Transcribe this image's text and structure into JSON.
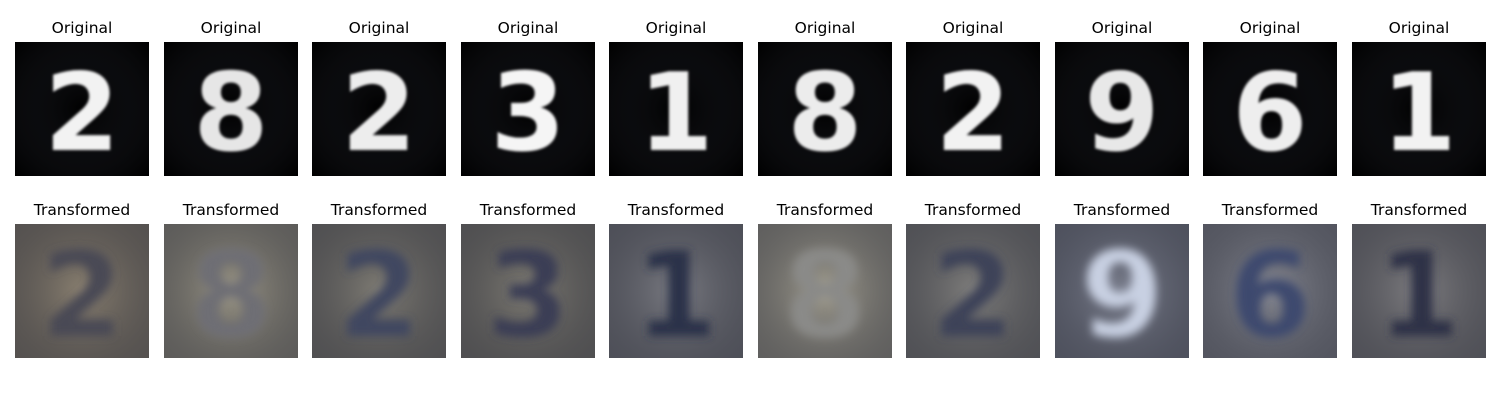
{
  "figure": {
    "rows": [
      {
        "name": "original",
        "title": "Original",
        "items": [
          {
            "digit": "2",
            "background": "#000000",
            "ink": "#f2f2f2"
          },
          {
            "digit": "8",
            "background": "#000000",
            "ink": "#e6e6e6"
          },
          {
            "digit": "2",
            "background": "#000000",
            "ink": "#ededed"
          },
          {
            "digit": "3",
            "background": "#000000",
            "ink": "#f5f5f5"
          },
          {
            "digit": "1",
            "background": "#000000",
            "ink": "#f0f0f0"
          },
          {
            "digit": "8",
            "background": "#000000",
            "ink": "#ececec"
          },
          {
            "digit": "2",
            "background": "#000000",
            "ink": "#f2f2f2"
          },
          {
            "digit": "9",
            "background": "#000000",
            "ink": "#e8e8e8"
          },
          {
            "digit": "6",
            "background": "#000000",
            "ink": "#eeeeee"
          },
          {
            "digit": "1",
            "background": "#000000",
            "ink": "#f2f2f2"
          }
        ]
      },
      {
        "name": "transformed",
        "title": "Transformed",
        "items": [
          {
            "digit": "2",
            "background": "#8a8070",
            "ink": "#4a4a55"
          },
          {
            "digit": "8",
            "background": "#9b9686",
            "ink": "#6e6e74"
          },
          {
            "digit": "2",
            "background": "#7f7c74",
            "ink": "#3f4660"
          },
          {
            "digit": "3",
            "background": "#7d7a72",
            "ink": "#3a3e55"
          },
          {
            "digit": "1",
            "background": "#7a7b82",
            "ink": "#2b3048"
          },
          {
            "digit": "8",
            "background": "#a29e90",
            "ink": "#8a8a88"
          },
          {
            "digit": "2",
            "background": "#7f7e7c",
            "ink": "#3c4358"
          },
          {
            "digit": "9",
            "background": "#7b7f8e",
            "ink": "#c8d0e2"
          },
          {
            "digit": "6",
            "background": "#868892",
            "ink": "#3e4a6e"
          },
          {
            "digit": "1",
            "background": "#7e7d80",
            "ink": "#2e3246"
          }
        ]
      }
    ]
  }
}
